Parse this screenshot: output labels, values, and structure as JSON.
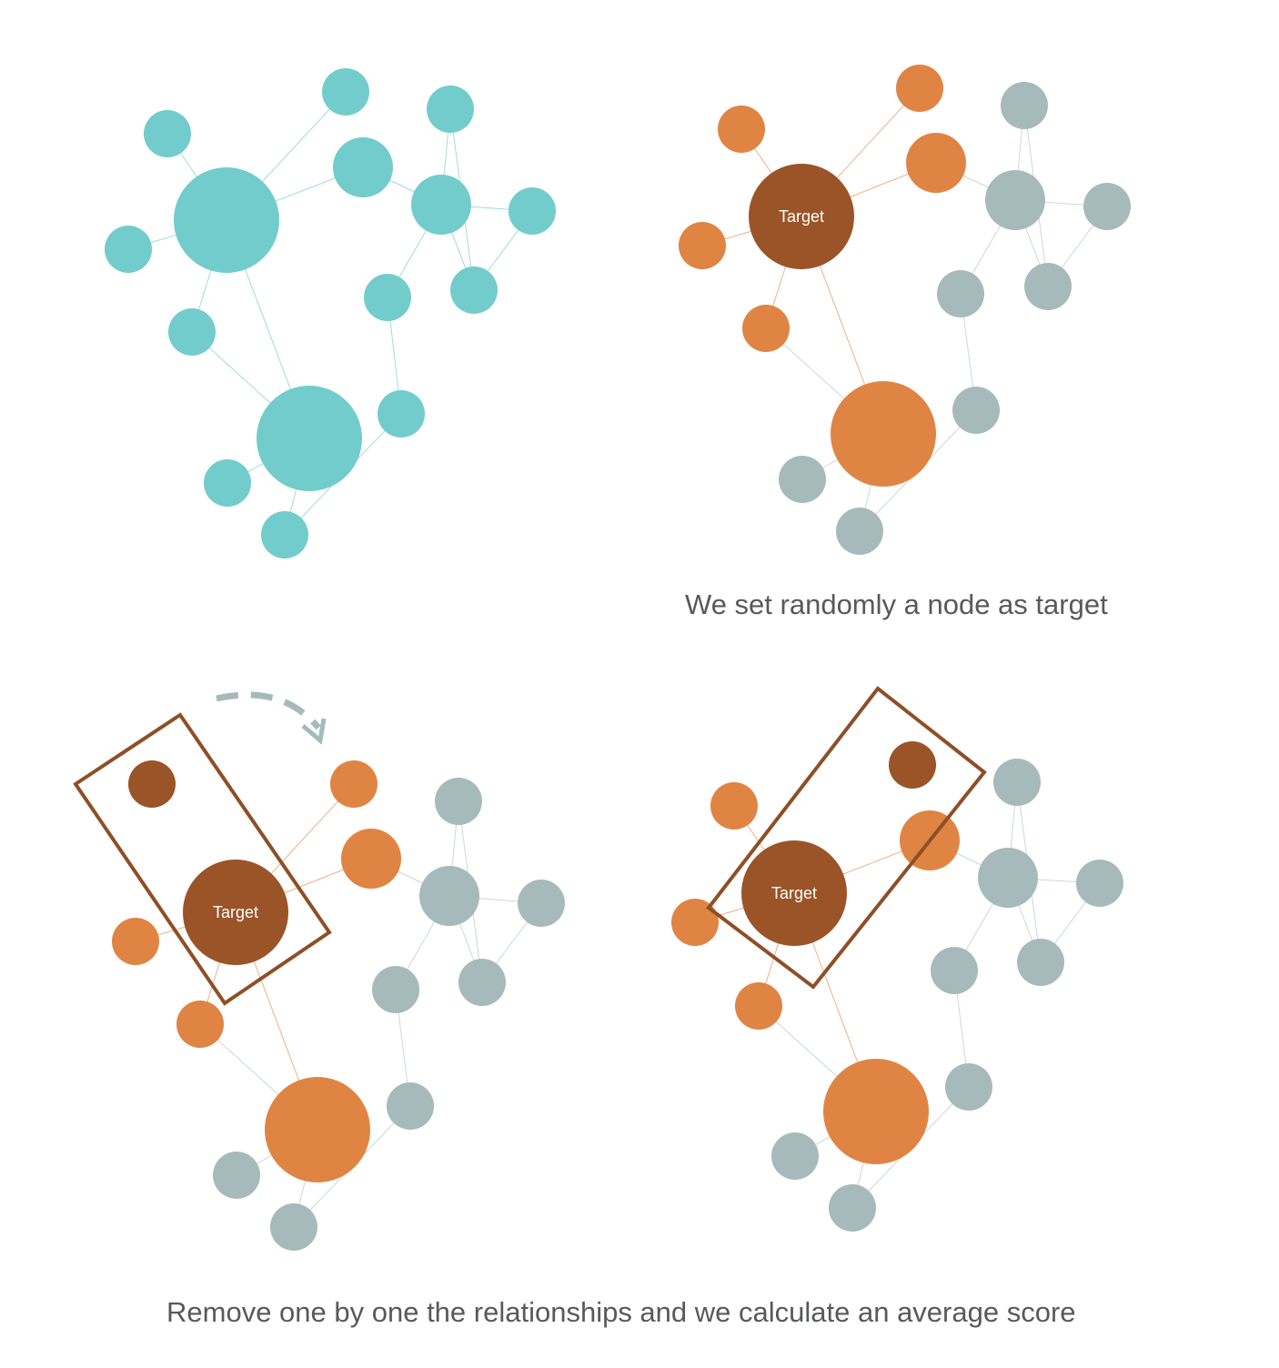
{
  "captions": {
    "set_target": "We set randomly a node as target",
    "remove_relationships": "Remove one by one the relationships and we calculate an average score"
  },
  "target_label": "Target",
  "colors": {
    "default_node": "#72cccb",
    "default_edge": "#9fdcdb",
    "target_node": "#9a5428",
    "neighbor_node": "#e08443",
    "neighbor_edge": "#eeb088",
    "other_node": "#a6babb",
    "other_edge": "#cdd7d7",
    "selection_box": "#8e4f27",
    "arrow": "#a6babb",
    "caption_text": "#58595b"
  },
  "panels": [
    {
      "id": "original-network",
      "description_key": null
    },
    {
      "id": "target-selected",
      "description_key": "set_target"
    },
    {
      "id": "relationship-removed-1",
      "description_key": "remove_relationships"
    },
    {
      "id": "relationship-removed-2",
      "description_key": "remove_relationships"
    }
  ]
}
